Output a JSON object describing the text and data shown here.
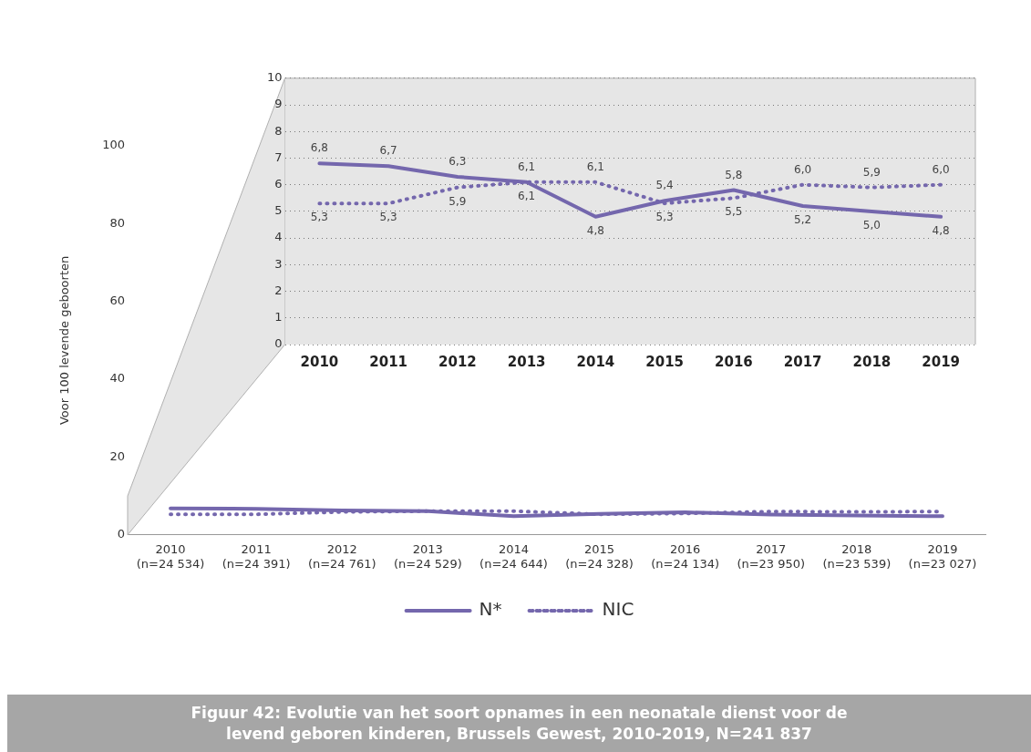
{
  "chart_data": [
    {
      "type": "line",
      "title": "Figuur 42: Evolutie van het soort opnames in een neonatale dienst voor de levend geboren kinderen, Brussels Gewest, 2010-2019, N=241 837",
      "ylabel": "Voor 100 levende geboorten",
      "categories": [
        "2010\n(n=24 534)",
        "2011\n(n=24 391)",
        "2012\n(n=24 761)",
        "2013\n(n=24 529)",
        "2014\n(n=24 644)",
        "2015\n(n=24 328)",
        "2016\n(n=24 134)",
        "2017\n(n=23 950)",
        "2018\n(n=23 539)",
        "2019\n(n=23 027)"
      ],
      "series": [
        {
          "name": "N*",
          "color": "#7467ad",
          "line_style": "solid",
          "values": [
            6.8,
            6.7,
            6.3,
            6.1,
            4.8,
            5.4,
            5.8,
            5.2,
            5.0,
            4.8
          ]
        },
        {
          "name": "NIC",
          "color": "#7467ad",
          "line_style": "dotted",
          "values": [
            5.3,
            5.3,
            5.9,
            6.1,
            6.1,
            5.3,
            5.5,
            6.0,
            5.9,
            6.0
          ]
        }
      ],
      "ylim": [
        0,
        100
      ],
      "yticks": [
        0,
        20,
        40,
        60,
        80,
        100
      ],
      "grid": false,
      "legend": "bottom"
    },
    {
      "type": "line",
      "categories": [
        "2010",
        "2011",
        "2012",
        "2013",
        "2014",
        "2015",
        "2016",
        "2017",
        "2018",
        "2019"
      ],
      "series": [
        {
          "color": "#7467ad",
          "line_style": "solid",
          "values": [
            6.8,
            6.7,
            6.3,
            6.1,
            4.8,
            5.4,
            5.8,
            5.2,
            5.0,
            4.8
          ],
          "value_labels": [
            "6,8",
            "6,7",
            "6,3",
            "6,1",
            "4,8",
            "5,4",
            "5,8",
            "5,2",
            "5,0",
            "4,8"
          ]
        },
        {
          "color": "#7467ad",
          "line_style": "dotted",
          "values": [
            5.3,
            5.3,
            5.9,
            6.1,
            6.1,
            5.3,
            5.5,
            6.0,
            5.9,
            6.0
          ],
          "value_labels": [
            "5,3",
            "5,3",
            "5,9",
            "6,1",
            "6,1",
            "5,3",
            "5,5",
            "6,0",
            "5,9",
            "6,0"
          ]
        }
      ],
      "ylim": [
        0,
        10
      ],
      "yticks": [
        0,
        1,
        2,
        3,
        4,
        5,
        6,
        7,
        8,
        9,
        10
      ],
      "grid": "y"
    }
  ]
}
